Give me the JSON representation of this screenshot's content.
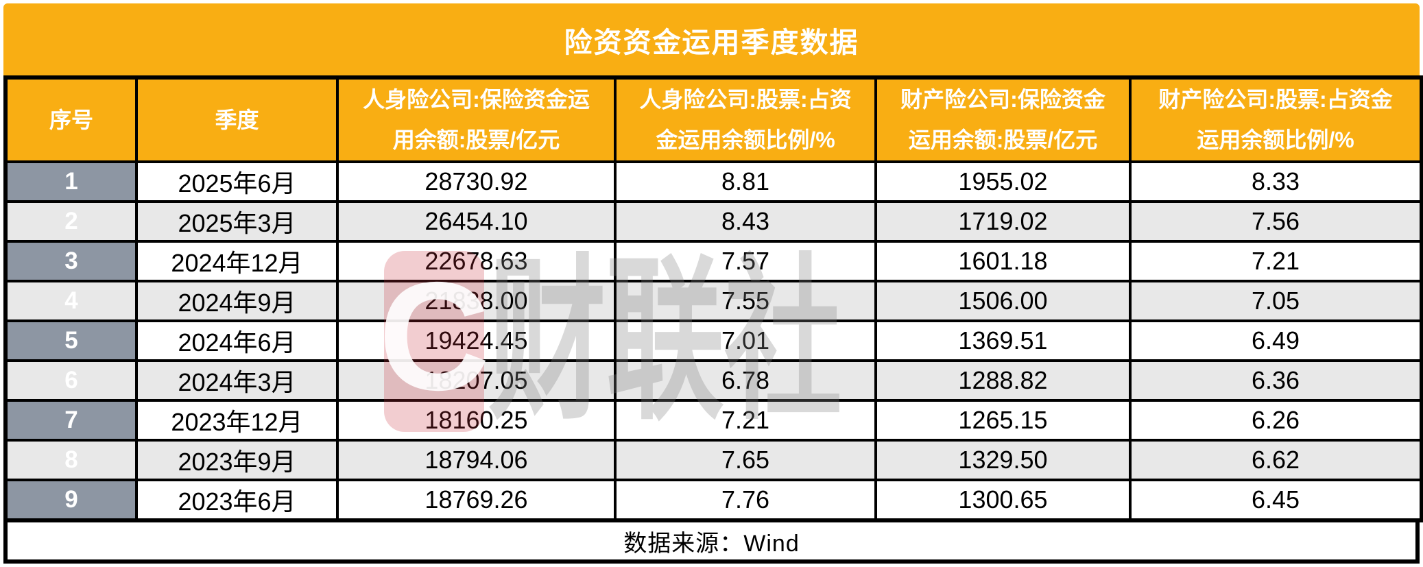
{
  "title": "险资资金运用季度数据",
  "source": "数据来源：Wind",
  "watermark": {
    "logo_letter": "C",
    "text": "财联社"
  },
  "colors": {
    "accent_orange": "#f9ae13",
    "serial_gray_blue": "#8d96a3",
    "alt_row_gray": "#e8e8e8",
    "border_black": "#000000",
    "title_text": "#ffffff"
  },
  "header_display": [
    "序号",
    "季度",
    "人身险公司:保险资金运\n用余额:股票/亿元",
    "人身险公司:股票:占资\n金运用余额比例/%",
    "财产险公司:保险资金\n运用余额:股票/亿元",
    "财产险公司:股票:占资金\n运用余额比例/%"
  ],
  "chart_data": {
    "type": "table",
    "title": "险资资金运用季度数据",
    "columns": [
      "序号",
      "季度",
      "人身险公司:保险资金运用余额:股票/亿元",
      "人身险公司:股票:占资金运用余额比例/%",
      "财产险公司:保险资金运用余额:股票/亿元",
      "财产险公司:股票:占资金运用余额比例/%"
    ],
    "rows": [
      [
        "1",
        "2025年6月",
        "28730.92",
        "8.81",
        "1955.02",
        "8.33"
      ],
      [
        "2",
        "2025年3月",
        "26454.10",
        "8.43",
        "1719.02",
        "7.56"
      ],
      [
        "3",
        "2024年12月",
        "22678.63",
        "7.57",
        "1601.18",
        "7.21"
      ],
      [
        "4",
        "2024年9月",
        "21838.00",
        "7.55",
        "1506.00",
        "7.05"
      ],
      [
        "5",
        "2024年6月",
        "19424.45",
        "7.01",
        "1369.51",
        "6.49"
      ],
      [
        "6",
        "2024年3月",
        "18207.05",
        "6.78",
        "1288.82",
        "6.36"
      ],
      [
        "7",
        "2023年12月",
        "18160.25",
        "7.21",
        "1265.15",
        "6.26"
      ],
      [
        "8",
        "2023年9月",
        "18794.06",
        "7.65",
        "1329.50",
        "6.62"
      ],
      [
        "9",
        "2023年6月",
        "18769.26",
        "7.76",
        "1300.65",
        "6.45"
      ]
    ],
    "source": "数据来源：Wind"
  }
}
